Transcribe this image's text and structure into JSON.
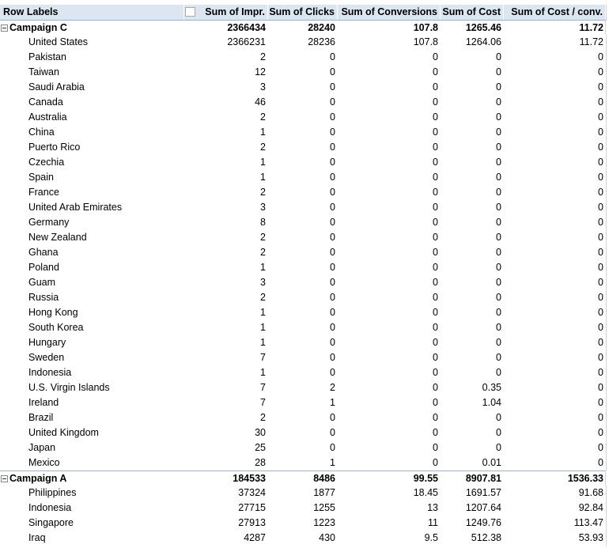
{
  "header": {
    "columns": [
      "Row Labels",
      "Sum of Impr.",
      "Sum of Clicks",
      "Sum of Conversions",
      "Sum of Cost",
      "Sum of Cost / conv."
    ]
  },
  "groups": [
    {
      "label": "Campaign C",
      "values": [
        2366434,
        28240,
        107.8,
        1265.46,
        11.72
      ],
      "rows": [
        {
          "label": "United States",
          "values": [
            2366231,
            28236,
            107.8,
            1264.06,
            11.72
          ]
        },
        {
          "label": "Pakistan",
          "values": [
            2,
            0,
            0,
            0,
            0
          ]
        },
        {
          "label": "Taiwan",
          "values": [
            12,
            0,
            0,
            0,
            0
          ]
        },
        {
          "label": "Saudi Arabia",
          "values": [
            3,
            0,
            0,
            0,
            0
          ]
        },
        {
          "label": "Canada",
          "values": [
            46,
            0,
            0,
            0,
            0
          ]
        },
        {
          "label": "Australia",
          "values": [
            2,
            0,
            0,
            0,
            0
          ]
        },
        {
          "label": "China",
          "values": [
            1,
            0,
            0,
            0,
            0
          ]
        },
        {
          "label": "Puerto Rico",
          "values": [
            2,
            0,
            0,
            0,
            0
          ]
        },
        {
          "label": "Czechia",
          "values": [
            1,
            0,
            0,
            0,
            0
          ]
        },
        {
          "label": "Spain",
          "values": [
            1,
            0,
            0,
            0,
            0
          ]
        },
        {
          "label": "France",
          "values": [
            2,
            0,
            0,
            0,
            0
          ]
        },
        {
          "label": "United Arab Emirates",
          "values": [
            3,
            0,
            0,
            0,
            0
          ]
        },
        {
          "label": "Germany",
          "values": [
            8,
            0,
            0,
            0,
            0
          ]
        },
        {
          "label": "New Zealand",
          "values": [
            2,
            0,
            0,
            0,
            0
          ]
        },
        {
          "label": "Ghana",
          "values": [
            2,
            0,
            0,
            0,
            0
          ]
        },
        {
          "label": "Poland",
          "values": [
            1,
            0,
            0,
            0,
            0
          ]
        },
        {
          "label": "Guam",
          "values": [
            3,
            0,
            0,
            0,
            0
          ]
        },
        {
          "label": "Russia",
          "values": [
            2,
            0,
            0,
            0,
            0
          ]
        },
        {
          "label": "Hong Kong",
          "values": [
            1,
            0,
            0,
            0,
            0
          ]
        },
        {
          "label": "South Korea",
          "values": [
            1,
            0,
            0,
            0,
            0
          ]
        },
        {
          "label": "Hungary",
          "values": [
            1,
            0,
            0,
            0,
            0
          ]
        },
        {
          "label": "Sweden",
          "values": [
            7,
            0,
            0,
            0,
            0
          ]
        },
        {
          "label": "Indonesia",
          "values": [
            1,
            0,
            0,
            0,
            0
          ]
        },
        {
          "label": "U.S. Virgin Islands",
          "values": [
            7,
            2,
            0,
            0.35,
            0
          ]
        },
        {
          "label": "Ireland",
          "values": [
            7,
            1,
            0,
            1.04,
            0
          ]
        },
        {
          "label": "Brazil",
          "values": [
            2,
            0,
            0,
            0,
            0
          ]
        },
        {
          "label": "United Kingdom",
          "values": [
            30,
            0,
            0,
            0,
            0
          ]
        },
        {
          "label": "Japan",
          "values": [
            25,
            0,
            0,
            0,
            0
          ]
        },
        {
          "label": "Mexico",
          "values": [
            28,
            1,
            0,
            0.01,
            0
          ]
        }
      ]
    },
    {
      "label": "Campaign A",
      "values": [
        184533,
        8486,
        99.55,
        8907.81,
        1536.33
      ],
      "rows": [
        {
          "label": "Philippines",
          "values": [
            37324,
            1877,
            18.45,
            1691.57,
            91.68
          ]
        },
        {
          "label": "Indonesia",
          "values": [
            27715,
            1255,
            13,
            1207.64,
            92.84
          ]
        },
        {
          "label": "Singapore",
          "values": [
            27913,
            1223,
            11,
            1249.76,
            113.47
          ]
        },
        {
          "label": "Iraq",
          "values": [
            4287,
            430,
            9.5,
            512.38,
            53.93
          ]
        }
      ]
    }
  ]
}
